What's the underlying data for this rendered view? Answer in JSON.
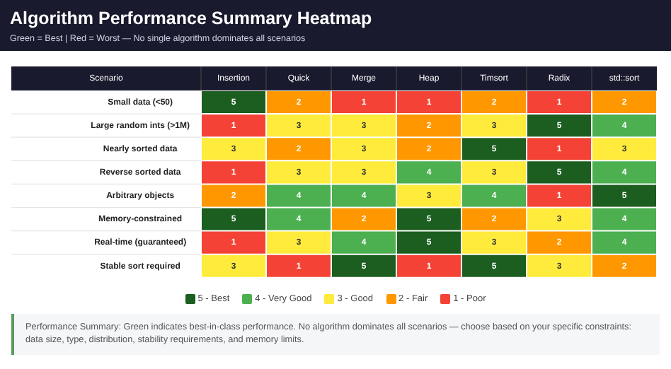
{
  "chart_data": {
    "type": "heatmap",
    "title": "Algorithm Performance Summary Heatmap",
    "subtitle": "Green = Best | Red = Worst — No single algorithm dominates all scenarios",
    "ylabel": "Scenario",
    "categories": [
      "Insertion",
      "Quick",
      "Merge",
      "Heap",
      "Timsort",
      "Radix",
      "std::sort"
    ],
    "y_categories": [
      "Small data (<50)",
      "Large random ints (>1M)",
      "Nearly sorted data",
      "Reverse sorted data",
      "Arbitrary objects",
      "Memory-constrained",
      "Real-time (guaranteed)",
      "Stable sort required"
    ],
    "cells": [
      [
        5,
        2,
        1,
        1,
        2,
        1,
        2
      ],
      [
        1,
        3,
        3,
        2,
        3,
        5,
        4
      ],
      [
        3,
        2,
        3,
        2,
        5,
        1,
        3
      ],
      [
        1,
        3,
        3,
        4,
        3,
        5,
        4
      ],
      [
        2,
        4,
        4,
        3,
        4,
        1,
        5
      ],
      [
        5,
        4,
        2,
        5,
        2,
        3,
        4
      ],
      [
        1,
        3,
        4,
        5,
        3,
        2,
        4
      ],
      [
        3,
        1,
        5,
        1,
        5,
        3,
        2
      ]
    ],
    "data_labels": true,
    "colors": [
      "#1b5e20",
      "#4caf50",
      "#ffeb3b",
      "#ff9800",
      "#f44336"
    ],
    "annotations": [
      "5 - Best",
      "4 - Very Good",
      "3 - Good",
      "2 - Fair",
      "1 - Poor",
      "Performance Summary: Green indicates best-in-class performance. No algorithm dominates all scenarios — choose based on your specific constraints: data size, type, distribution, stability requirements, and memory limits."
    ]
  }
}
